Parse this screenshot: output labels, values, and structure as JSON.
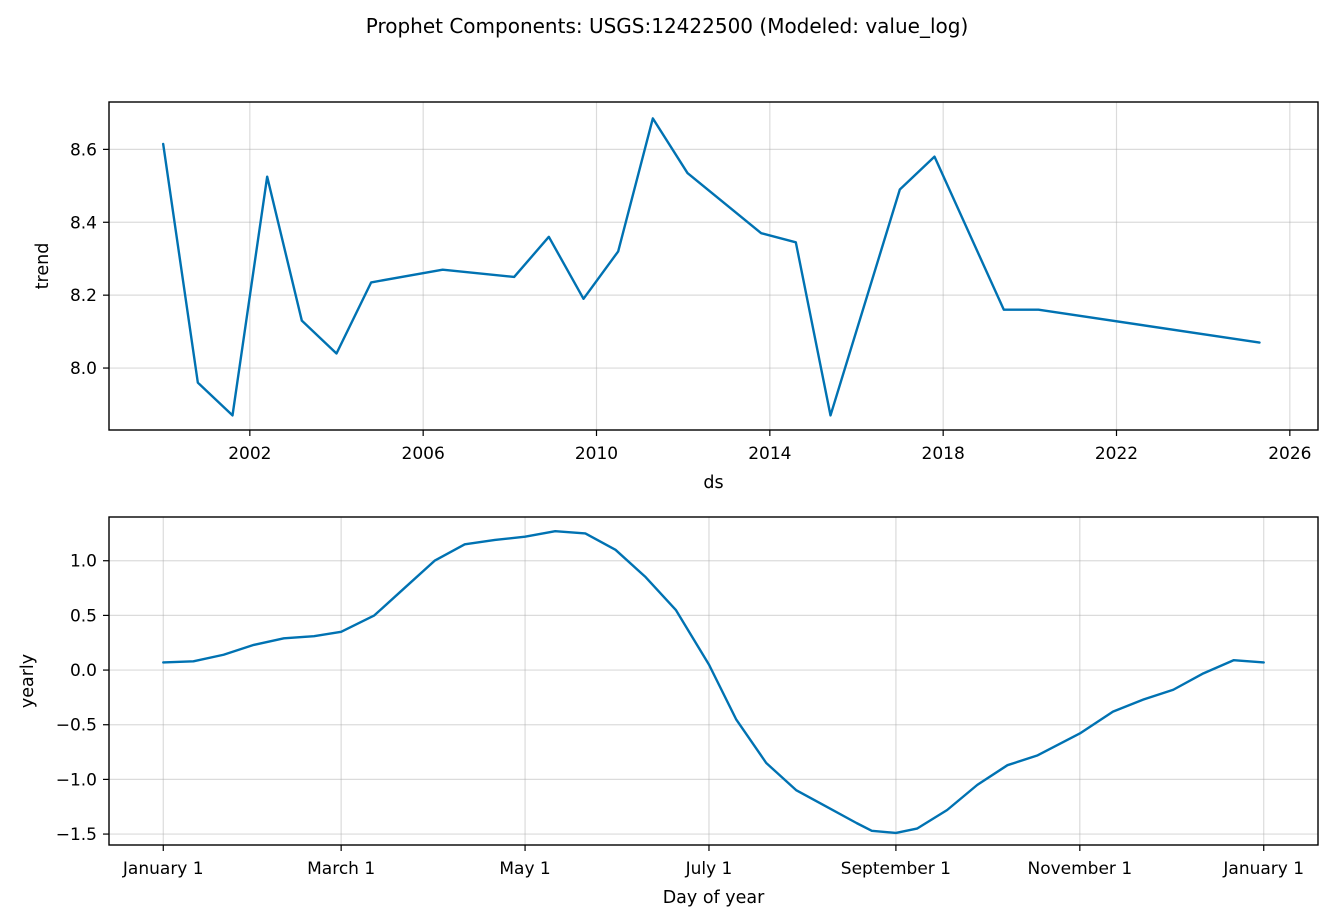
{
  "title": "Prophet Components: USGS:12422500 (Modeled: value_log)",
  "line_color": "#0072B2",
  "chart_data": [
    {
      "type": "line",
      "ylabel": "trend",
      "xlabel": "ds",
      "grid": true,
      "x_ticks": [
        "2002",
        "2006",
        "2010",
        "2014",
        "2018",
        "2022",
        "2026"
      ],
      "y_ticks": [
        "8.0",
        "8.2",
        "8.4",
        "8.6"
      ],
      "xlim": [
        1998.75,
        2026.65
      ],
      "ylim": [
        7.83,
        8.73
      ],
      "series": [
        {
          "x": [
            2000.0,
            2000.8,
            2001.6,
            2002.4,
            2003.2,
            2004.0,
            2004.8,
            2006.45,
            2008.1,
            2008.9,
            2009.7,
            2010.5,
            2011.3,
            2012.1,
            2013.8,
            2014.6,
            2015.4,
            2017.0,
            2017.8,
            2019.4,
            2020.2,
            2025.3
          ],
          "y": [
            8.615,
            7.96,
            7.87,
            8.525,
            8.13,
            8.04,
            8.235,
            8.27,
            8.25,
            8.36,
            8.19,
            8.32,
            8.685,
            8.535,
            8.37,
            8.345,
            7.87,
            8.49,
            8.58,
            8.16,
            8.16,
            8.07
          ]
        }
      ]
    },
    {
      "type": "line",
      "ylabel": "yearly",
      "xlabel": "Day of year",
      "grid": true,
      "x_ticks": [
        "January 1",
        "March 1",
        "May 1",
        "July 1",
        "September 1",
        "November 1",
        "January 1"
      ],
      "y_ticks": [
        "−1.5",
        "−1.0",
        "−0.5",
        "0.0",
        "0.5",
        "1.0"
      ],
      "xlim": [
        -18,
        383
      ],
      "ylim": [
        -1.6,
        1.4
      ],
      "series": [
        {
          "x": [
            0,
            10,
            20,
            30,
            40,
            50,
            59,
            70,
            80,
            90,
            100,
            110,
            120,
            130,
            140,
            150,
            160,
            170,
            181,
            190,
            200,
            210,
            220,
            230,
            235,
            243,
            250,
            260,
            270,
            280,
            290,
            304,
            315,
            325,
            335,
            345,
            355,
            365
          ],
          "y": [
            0.07,
            0.08,
            0.14,
            0.23,
            0.29,
            0.31,
            0.35,
            0.5,
            0.75,
            1.0,
            1.15,
            1.19,
            1.22,
            1.27,
            1.25,
            1.1,
            0.85,
            0.55,
            0.05,
            -0.45,
            -0.85,
            -1.1,
            -1.25,
            -1.4,
            -1.47,
            -1.49,
            -1.45,
            -1.28,
            -1.05,
            -0.87,
            -0.78,
            -0.58,
            -0.38,
            -0.27,
            -0.18,
            -0.03,
            0.09,
            0.07
          ]
        }
      ]
    }
  ]
}
